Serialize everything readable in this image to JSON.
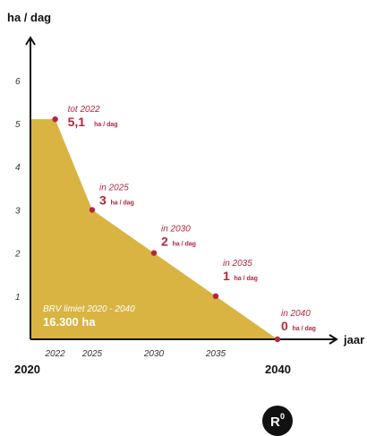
{
  "chart_data": {
    "type": "area",
    "ylabel": "ha / dag",
    "xlabel": "jaar",
    "ylim": [
      0,
      7
    ],
    "xlim": [
      2020,
      2042
    ],
    "y_ticks": [
      "1",
      "2",
      "3",
      "4",
      "5",
      "6"
    ],
    "x_ticks": [
      "2022",
      "2025",
      "2030",
      "2035"
    ],
    "x_start_label": "2020",
    "x_end_label": "2040",
    "series": [
      {
        "x": [
          2020,
          2022,
          2025,
          2030,
          2035,
          2040
        ],
        "y": [
          5.1,
          5.1,
          3,
          2,
          1,
          0
        ]
      }
    ],
    "annotations": [
      {
        "x": 2022,
        "y": 5.1,
        "prefix": "tot 2022",
        "value": "5,1",
        "unit": "ha / dag"
      },
      {
        "x": 2025,
        "y": 3,
        "prefix": "in 2025",
        "value": "3",
        "unit": "ha / dag"
      },
      {
        "x": 2030,
        "y": 2,
        "prefix": "in 2030",
        "value": "2",
        "unit": "ha / dag"
      },
      {
        "x": 2035,
        "y": 1,
        "prefix": "in 2035",
        "value": "1",
        "unit": "ha / dag"
      },
      {
        "x": 2040,
        "y": 0,
        "prefix": "in 2040",
        "value": "0",
        "unit": "ha / dag"
      }
    ],
    "inside_label": {
      "line1": "BRV limiet 2020 - 2040",
      "line2": "16.300 ha"
    },
    "grid": false,
    "legend": "none"
  },
  "logo": {
    "text": "R",
    "superscript": "0"
  },
  "colors": {
    "fill": "#D9B443",
    "accent": "#B3283E",
    "axis": "#111111"
  }
}
